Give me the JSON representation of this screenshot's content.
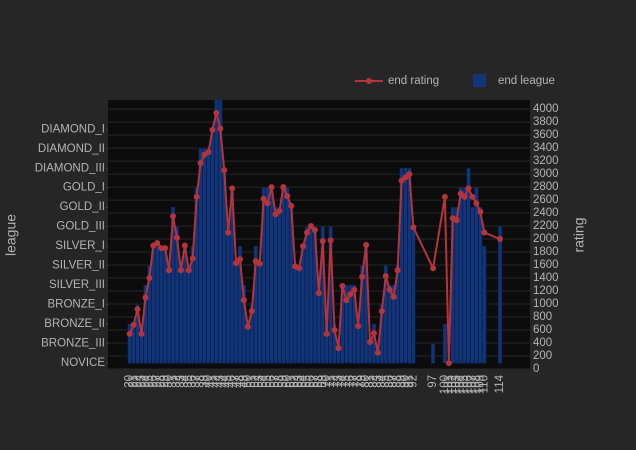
{
  "chart_data": {
    "type": "bar_line",
    "y_title": "league",
    "y2_title": "rating",
    "x": [
      20,
      21,
      22,
      23,
      24,
      25,
      26,
      27,
      28,
      29,
      30,
      31,
      32,
      33,
      34,
      35,
      36,
      37,
      38,
      39,
      40,
      41,
      42,
      43,
      44,
      45,
      46,
      47,
      48,
      49,
      50,
      51,
      52,
      53,
      54,
      55,
      56,
      57,
      58,
      59,
      60,
      61,
      62,
      63,
      64,
      65,
      66,
      67,
      68,
      69,
      70,
      71,
      72,
      73,
      74,
      75,
      76,
      77,
      78,
      79,
      80,
      81,
      82,
      83,
      84,
      85,
      86,
      87,
      88,
      89,
      90,
      91,
      92,
      97,
      100,
      101,
      102,
      103,
      104,
      105,
      106,
      107,
      108,
      109,
      110,
      114
    ],
    "xlim": [
      14.5,
      121.6
    ],
    "ylim": [
      -0.3,
      13.5
    ],
    "yticks": [
      {
        "value": 0,
        "label": "NOVICE"
      },
      {
        "value": 1,
        "label": "BRONZE_III"
      },
      {
        "value": 2,
        "label": "BRONZE_II"
      },
      {
        "value": 3,
        "label": "BRONZE_I"
      },
      {
        "value": 4,
        "label": "SILVER_III"
      },
      {
        "value": 5,
        "label": "SILVER_II"
      },
      {
        "value": 6,
        "label": "SILVER_I"
      },
      {
        "value": 7,
        "label": "GOLD_III"
      },
      {
        "value": 8,
        "label": "GOLD_II"
      },
      {
        "value": 9,
        "label": "GOLD_I"
      },
      {
        "value": 10,
        "label": "DIAMOND_III"
      },
      {
        "value": 11,
        "label": "DIAMOND_II"
      },
      {
        "value": 12,
        "label": "DIAMOND_I"
      }
    ],
    "y2lim": [
      0,
      4140
    ],
    "y2ticks": [
      0,
      200,
      400,
      600,
      800,
      1000,
      1200,
      1400,
      1600,
      1800,
      2000,
      2200,
      2400,
      2600,
      2800,
      3000,
      3200,
      3400,
      3600,
      3800,
      4000
    ],
    "grid": true,
    "series": [
      {
        "name": "end rating",
        "type": "line",
        "axis": "y2",
        "color": "#b5343c",
        "values": [
          540,
          680,
          920,
          540,
          1100,
          1400,
          1900,
          1940,
          1860,
          1860,
          1520,
          2350,
          2020,
          1520,
          1900,
          1520,
          1700,
          2650,
          3170,
          3300,
          3340,
          3680,
          3940,
          3700,
          3060,
          2100,
          2780,
          1630,
          1690,
          1060,
          650,
          890,
          1660,
          1620,
          2620,
          2550,
          2800,
          2380,
          2430,
          2800,
          2660,
          2510,
          1580,
          1550,
          1890,
          2100,
          2200,
          2140,
          1170,
          1970,
          540,
          1980,
          600,
          320,
          1280,
          1060,
          1150,
          1220,
          660,
          1420,
          1910,
          415,
          550,
          250,
          890,
          1430,
          1220,
          1110,
          1520,
          2900,
          2950,
          3000,
          2180,
          1550,
          2650,
          90,
          2320,
          2290,
          2700,
          2650,
          2780,
          2650,
          2550,
          2420,
          2100,
          2000
        ]
      },
      {
        "name": "end league",
        "type": "bar",
        "axis": "y",
        "color": "#12357a",
        "values": [
          2,
          2,
          3,
          2,
          4,
          5,
          6,
          6,
          6,
          6,
          5,
          8,
          7,
          5,
          6,
          5,
          6,
          9,
          11,
          11,
          11,
          12,
          14,
          14,
          10,
          7,
          9,
          5,
          6,
          4,
          2,
          3,
          6,
          5,
          9,
          9,
          9,
          8,
          8,
          9,
          9,
          8,
          5,
          5,
          6,
          7,
          7,
          7,
          4,
          7,
          2,
          7,
          2,
          1,
          4,
          4,
          4,
          4,
          2,
          5,
          6,
          1,
          2,
          1,
          3,
          5,
          4,
          4,
          5,
          10,
          10,
          10,
          7,
          1,
          2,
          0,
          8,
          8,
          9,
          9,
          10,
          8,
          9,
          8,
          6,
          7
        ]
      }
    ]
  }
}
